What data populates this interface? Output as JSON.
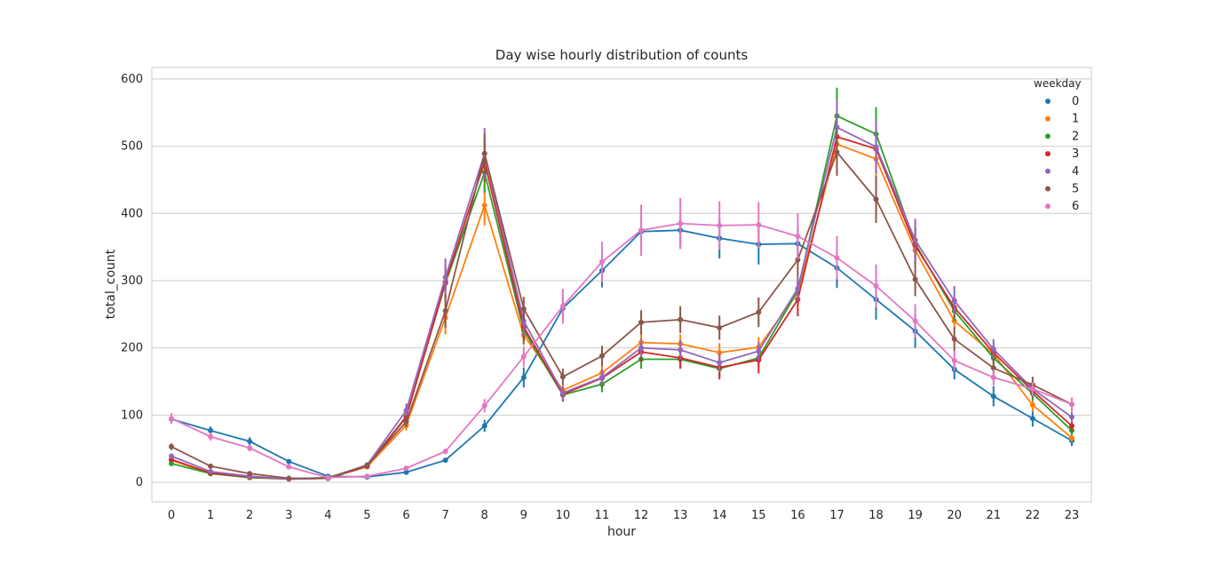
{
  "chart_data": {
    "type": "line",
    "title": "Day wise hourly distribution of counts",
    "xlabel": "hour",
    "ylabel": "total_count",
    "x": [
      0,
      1,
      2,
      3,
      4,
      5,
      6,
      7,
      8,
      9,
      10,
      11,
      12,
      13,
      14,
      15,
      16,
      17,
      18,
      19,
      20,
      21,
      22,
      23
    ],
    "y_ticks": [
      0,
      100,
      200,
      300,
      400,
      500,
      600
    ],
    "ylim": [
      -29,
      617
    ],
    "grid": true,
    "legend": {
      "title": "weekday",
      "placement": "top-right"
    },
    "series": [
      {
        "name": "0",
        "color": "#1f77b4",
        "values": [
          94,
          77,
          61,
          31,
          9,
          8,
          15,
          33,
          84,
          156,
          259,
          315,
          373,
          375,
          363,
          354,
          355,
          319,
          272,
          225,
          168,
          128,
          95,
          62
        ],
        "err": [
          6,
          6,
          6,
          3,
          2,
          1,
          2,
          3,
          9,
          15,
          16,
          25,
          22,
          22,
          30,
          30,
          25,
          30,
          30,
          25,
          15,
          15,
          12,
          8
        ]
      },
      {
        "name": "1",
        "color": "#ff7f0e",
        "values": [
          33,
          13,
          8,
          5,
          6,
          23,
          85,
          245,
          412,
          219,
          137,
          163,
          208,
          206,
          193,
          201,
          282,
          503,
          481,
          345,
          240,
          191,
          115,
          66
        ],
        "err": [
          4,
          3,
          2,
          1,
          1,
          3,
          8,
          25,
          30,
          15,
          10,
          12,
          14,
          14,
          14,
          15,
          18,
          25,
          28,
          20,
          12,
          12,
          10,
          6
        ]
      },
      {
        "name": "2",
        "color": "#2ca02c",
        "values": [
          28,
          13,
          7,
          5,
          7,
          25,
          98,
          296,
          461,
          226,
          130,
          146,
          183,
          183,
          169,
          185,
          285,
          545,
          518,
          355,
          255,
          185,
          132,
          77
        ],
        "err": [
          4,
          2,
          2,
          1,
          1,
          3,
          8,
          25,
          30,
          20,
          10,
          12,
          14,
          14,
          12,
          14,
          18,
          42,
          40,
          25,
          15,
          12,
          10,
          7
        ]
      },
      {
        "name": "3",
        "color": "#d62728",
        "values": [
          34,
          14,
          8,
          5,
          6,
          24,
          97,
          298,
          477,
          231,
          131,
          155,
          194,
          185,
          171,
          182,
          272,
          514,
          496,
          352,
          260,
          193,
          136,
          84
        ],
        "err": [
          4,
          2,
          2,
          1,
          1,
          3,
          8,
          25,
          30,
          20,
          10,
          12,
          14,
          16,
          18,
          20,
          25,
          30,
          35,
          25,
          15,
          12,
          10,
          8
        ]
      },
      {
        "name": "4",
        "color": "#9467bd",
        "values": [
          39,
          16,
          9,
          5,
          6,
          26,
          107,
          305,
          489,
          240,
          133,
          156,
          200,
          197,
          178,
          195,
          288,
          528,
          499,
          360,
          270,
          198,
          139,
          97
        ],
        "err": [
          4,
          2,
          2,
          1,
          1,
          3,
          10,
          28,
          38,
          22,
          10,
          12,
          14,
          14,
          14,
          14,
          18,
          42,
          40,
          32,
          22,
          15,
          12,
          8
        ]
      },
      {
        "name": "5",
        "color": "#8c564b",
        "values": [
          53,
          24,
          13,
          6,
          6,
          25,
          90,
          255,
          489,
          258,
          157,
          188,
          238,
          242,
          230,
          253,
          331,
          491,
          421,
          302,
          213,
          170,
          145,
          116
        ],
        "err": [
          5,
          3,
          2,
          1,
          1,
          3,
          8,
          25,
          30,
          18,
          12,
          15,
          18,
          20,
          18,
          22,
          25,
          35,
          35,
          25,
          18,
          15,
          12,
          10
        ]
      },
      {
        "name": "6",
        "color": "#e377c2",
        "values": [
          95,
          68,
          51,
          23,
          7,
          9,
          21,
          46,
          114,
          187,
          262,
          328,
          375,
          385,
          382,
          383,
          366,
          334,
          292,
          240,
          181,
          156,
          139,
          116
        ],
        "err": [
          8,
          6,
          5,
          3,
          1,
          1,
          2,
          4,
          10,
          15,
          26,
          30,
          38,
          38,
          36,
          34,
          34,
          32,
          32,
          25,
          15,
          12,
          10,
          10
        ]
      }
    ]
  }
}
